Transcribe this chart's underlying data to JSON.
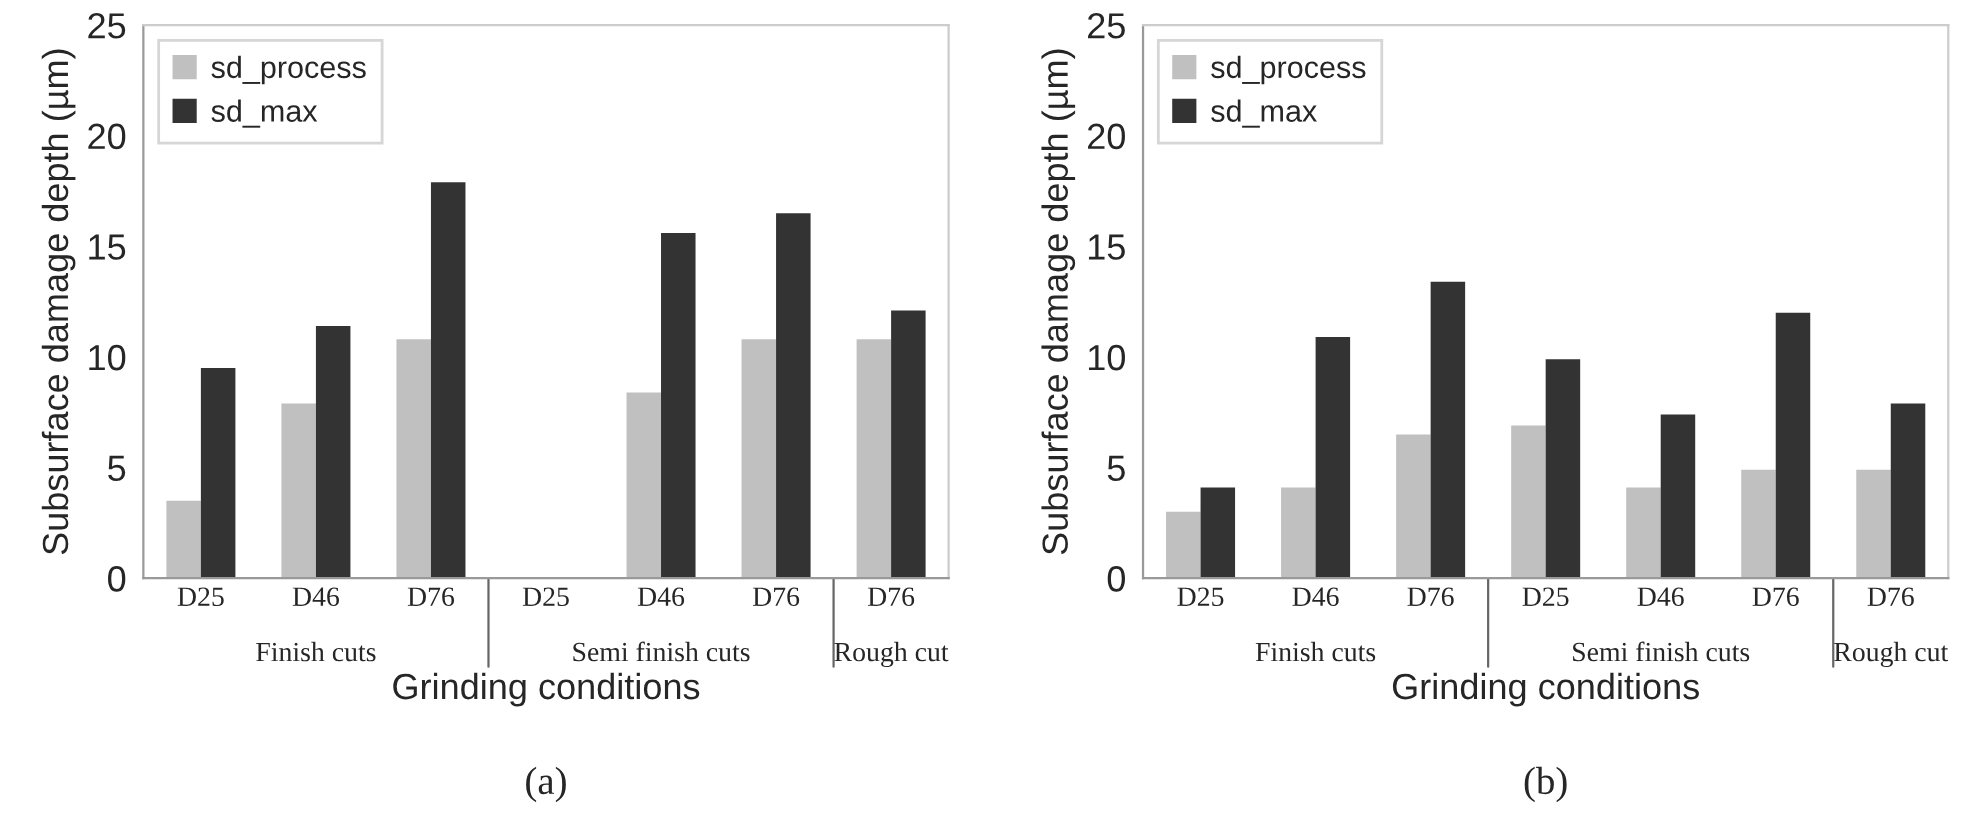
{
  "chart_data": [
    {
      "type": "bar",
      "title": "(a)",
      "xlabel": "Grinding conditions",
      "ylabel": "Subsurface damage depth (µm)",
      "categories": [
        "D25",
        "D46",
        "D76",
        "D25",
        "D46",
        "D76",
        "D76"
      ],
      "series": [
        {
          "name": "sd_process",
          "color": "#c0c0c0",
          "values": [
            3.5,
            7.9,
            10.8,
            null,
            8.4,
            10.8,
            10.8
          ]
        },
        {
          "name": "sd_max",
          "color": "#333333",
          "values": [
            9.5,
            11.4,
            17.9,
            null,
            15.6,
            16.5,
            12.1
          ]
        }
      ],
      "ylim": [
        0,
        25
      ],
      "yticks": [
        0,
        5,
        10,
        15,
        20,
        25
      ],
      "grid": false,
      "legend": "top left",
      "annotations": [
        "Finish cuts",
        "Semi finish cuts",
        "Rough cut"
      ]
    },
    {
      "type": "bar",
      "title": "(b)",
      "xlabel": "Grinding conditions",
      "ylabel": "Subsurface damage depth (µm)",
      "categories": [
        "D25",
        "D46",
        "D76",
        "D25",
        "D46",
        "D76",
        "D76"
      ],
      "series": [
        {
          "name": "sd_process",
          "color": "#c0c0c0",
          "values": [
            3.0,
            4.1,
            6.5,
            6.9,
            4.1,
            4.9,
            4.9
          ]
        },
        {
          "name": "sd_max",
          "color": "#333333",
          "values": [
            4.1,
            10.9,
            13.4,
            9.9,
            7.4,
            12.0,
            7.9
          ]
        }
      ],
      "ylim": [
        0,
        25
      ],
      "yticks": [
        0,
        5,
        10,
        15,
        20,
        25
      ],
      "grid": false,
      "legend": "top left",
      "annotations": [
        "Finish cuts",
        "Semi finish cuts",
        "Rough cut"
      ]
    }
  ]
}
